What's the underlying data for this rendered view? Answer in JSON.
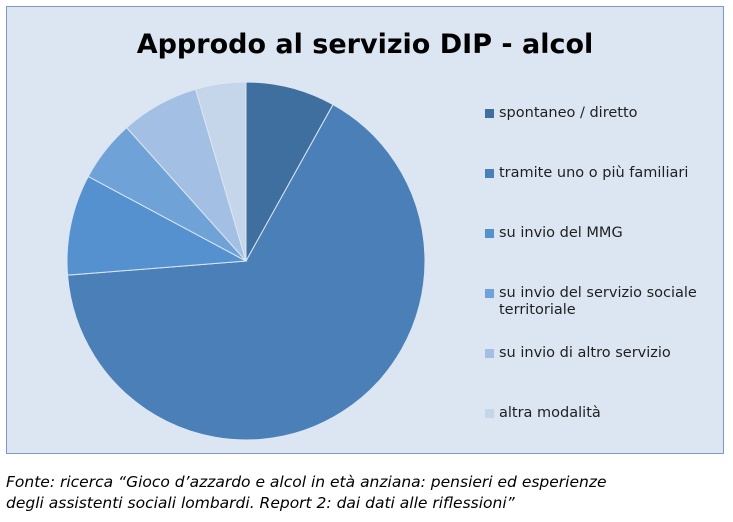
{
  "chart_data": {
    "type": "pie",
    "title": "Approdo al servizio DIP - alcol",
    "categories": [
      "spontaneo / diretto",
      "tramite uno o più familiari",
      "su invio del MMG",
      "su invio del servizio sociale territoriale",
      "su invio di altro servizio",
      "altra modalità"
    ],
    "values": [
      8,
      65,
      9,
      5.5,
      7,
      4.5
    ],
    "colors": [
      "#3f6f9f",
      "#4a80b7",
      "#5591cf",
      "#6fa3d8",
      "#a3bfe3",
      "#c5d5ea"
    ],
    "legend": "right",
    "start_angle": "12 o'clock",
    "direction": "clockwise"
  },
  "legend_items": [
    {
      "label": "spontaneo / diretto"
    },
    {
      "label": "tramite uno o più familiari"
    },
    {
      "label": "su invio del MMG"
    },
    {
      "label": "su invio del servizio sociale",
      "label2": "territoriale"
    },
    {
      "label": "su invio di altro servizio"
    },
    {
      "label": "altra modalità"
    }
  ],
  "caption": {
    "line1": "Fonte: ricerca “Gioco d’azzardo e alcol in età anziana: pensieri ed esperienze",
    "line2": "degli assistenti sociali lombardi. Report 2: dai dati alle riflessioni”"
  }
}
